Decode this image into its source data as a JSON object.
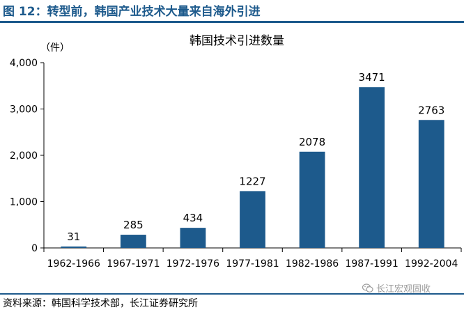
{
  "figure": {
    "title": "图 12：转型前，韩国产业技术大量来自海外引进",
    "source": "资料来源：韩国科学技术部，长江证券研究所",
    "watermark": "长江宏观固收",
    "watermark_icon": "wechat-icon"
  },
  "chart_data": {
    "type": "bar",
    "title": "韩国技术引进数量",
    "ylabel": "（件）",
    "xlabel": "",
    "categories": [
      "1962-1966",
      "1967-1971",
      "1972-1976",
      "1977-1981",
      "1982-1986",
      "1987-1991",
      "1992-2004"
    ],
    "values": [
      31,
      285,
      434,
      1227,
      2078,
      3471,
      2763
    ],
    "value_labels": [
      "31",
      "285",
      "434",
      "1227",
      "2078",
      "3471",
      "2763"
    ],
    "ylim": [
      0,
      4000
    ],
    "yticks": [
      0,
      1000,
      2000,
      3000,
      4000
    ],
    "ytick_labels": [
      "0",
      "1,000",
      "2,000",
      "3,000",
      "4,000"
    ],
    "bar_color": "#1d5a8c",
    "grid": false,
    "legend": "none"
  }
}
